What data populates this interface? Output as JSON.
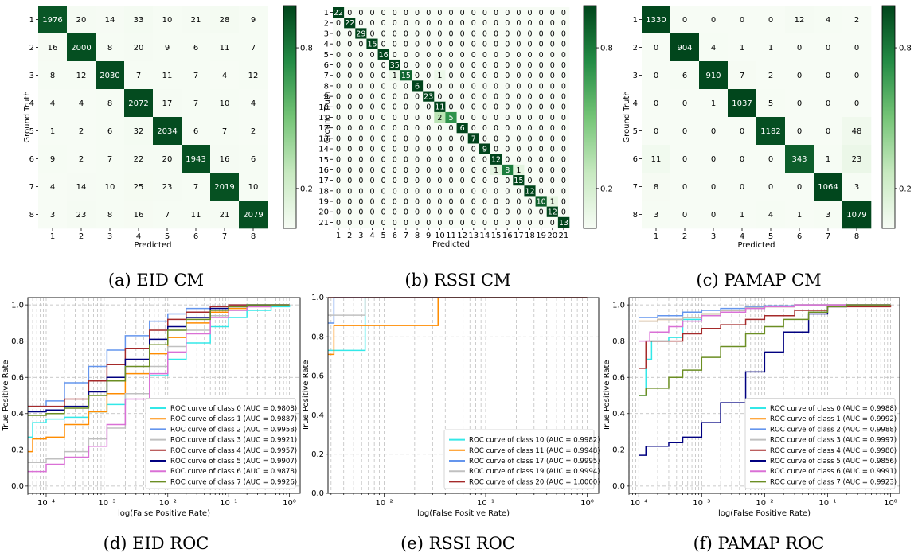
{
  "colors": {
    "cm_low": "#f7fcf5",
    "cm_high": "#00441b",
    "roc_classes": [
      "#33e8e8",
      "#ff8c00",
      "#6495ed",
      "#c0c0c0",
      "#a52a2a",
      "#000080",
      "#da70d6",
      "#6b8e23"
    ]
  },
  "chart_data": [
    {
      "id": "eid_cm",
      "type": "heatmap",
      "caption": "(a) EID CM",
      "xlabel": "Predicted",
      "ylabel": "Ground Truth",
      "labels": [
        "1",
        "2",
        "3",
        "4",
        "5",
        "6",
        "7",
        "8"
      ],
      "colorbar_ticks": [
        0.2,
        0.8
      ],
      "matrix": [
        [
          1976,
          20,
          14,
          33,
          10,
          21,
          28,
          9
        ],
        [
          16,
          2000,
          8,
          20,
          9,
          6,
          11,
          7
        ],
        [
          8,
          12,
          2030,
          7,
          11,
          7,
          4,
          12
        ],
        [
          4,
          4,
          8,
          2072,
          17,
          7,
          10,
          4
        ],
        [
          1,
          2,
          6,
          32,
          2034,
          6,
          7,
          2
        ],
        [
          9,
          2,
          7,
          22,
          20,
          1943,
          16,
          6
        ],
        [
          4,
          14,
          10,
          25,
          23,
          7,
          2019,
          10
        ],
        [
          3,
          23,
          8,
          16,
          7,
          11,
          21,
          2079
        ]
      ]
    },
    {
      "id": "rssi_cm",
      "type": "heatmap",
      "caption": "(b) RSSI CM",
      "xlabel": "Predicted",
      "ylabel": "Ground Truth",
      "labels": [
        "1",
        "2",
        "3",
        "4",
        "5",
        "6",
        "7",
        "8",
        "9",
        "10",
        "11",
        "12",
        "13",
        "14",
        "15",
        "16",
        "17",
        "18",
        "19",
        "20",
        "21"
      ],
      "colorbar_ticks": [
        0.2,
        0.8
      ],
      "diagonal": [
        22,
        22,
        29,
        15,
        16,
        35,
        15,
        6,
        23,
        11,
        5,
        6,
        7,
        9,
        12,
        8,
        15,
        12,
        10,
        12,
        13
      ],
      "off_diagonal": [
        {
          "row": 7,
          "col": 6,
          "value": 1
        },
        {
          "row": 7,
          "col": 10,
          "value": 1
        },
        {
          "row": 11,
          "col": 10,
          "value": 2
        },
        {
          "row": 16,
          "col": 15,
          "value": 1
        },
        {
          "row": 16,
          "col": 17,
          "value": 1
        },
        {
          "row": 19,
          "col": 20,
          "value": 1
        }
      ]
    },
    {
      "id": "pamap_cm",
      "type": "heatmap",
      "caption": "(c) PAMAP CM",
      "xlabel": "Predicted",
      "ylabel": "Ground Truth",
      "labels": [
        "1",
        "2",
        "3",
        "4",
        "5",
        "6",
        "7",
        "8"
      ],
      "colorbar_ticks": [
        0.2,
        0.8
      ],
      "matrix": [
        [
          1330,
          0,
          0,
          0,
          0,
          12,
          4,
          2
        ],
        [
          0,
          904,
          4,
          1,
          1,
          0,
          0,
          0
        ],
        [
          0,
          6,
          910,
          7,
          2,
          0,
          0,
          0
        ],
        [
          0,
          0,
          1,
          1037,
          5,
          0,
          0,
          0
        ],
        [
          0,
          0,
          0,
          0,
          1182,
          0,
          0,
          48
        ],
        [
          11,
          0,
          0,
          0,
          0,
          343,
          1,
          23
        ],
        [
          8,
          0,
          0,
          0,
          0,
          0,
          1064,
          3
        ],
        [
          3,
          0,
          0,
          1,
          4,
          1,
          3,
          1079
        ]
      ]
    },
    {
      "id": "eid_roc",
      "type": "line",
      "caption": "(d) EID ROC",
      "xlabel": "log(False Positive Rate)",
      "ylabel": "True Positive Rate",
      "x_scale": "log",
      "xlim": [
        5e-05,
        1.5
      ],
      "ylim": [
        -0.04,
        1.04
      ],
      "x_ticks": [
        "10⁻⁴",
        "10⁻³",
        "10⁻²",
        "10⁻¹",
        "10⁰"
      ],
      "y_ticks": [
        "0.0",
        "0.2",
        "0.4",
        "0.6",
        "0.8",
        "1.0"
      ],
      "grid": true,
      "legend_position": "lower right",
      "series": [
        {
          "name": "ROC curve of class 0 (AUC = 0.9808)",
          "x": [
            5e-05,
            6e-05,
            0.0001,
            0.0002,
            0.0005,
            0.001,
            0.002,
            0.005,
            0.01,
            0.02,
            0.05,
            0.1,
            0.2,
            0.5,
            1.0
          ],
          "y": [
            0.27,
            0.35,
            0.37,
            0.38,
            0.41,
            0.45,
            0.51,
            0.61,
            0.7,
            0.79,
            0.88,
            0.93,
            0.97,
            0.99,
            1.0
          ]
        },
        {
          "name": "ROC curve of class 1 (AUC = 0.9887)",
          "x": [
            5e-05,
            6e-05,
            0.0001,
            0.0002,
            0.0005,
            0.001,
            0.002,
            0.005,
            0.01,
            0.02,
            0.05,
            0.1,
            0.2,
            0.5,
            1.0
          ],
          "y": [
            0.19,
            0.26,
            0.27,
            0.34,
            0.41,
            0.51,
            0.62,
            0.73,
            0.82,
            0.9,
            0.96,
            0.98,
            0.99,
            1.0,
            1.0
          ]
        },
        {
          "name": "ROC curve of class 2 (AUC = 0.9958)",
          "x": [
            5e-05,
            6e-05,
            0.0001,
            0.0002,
            0.0005,
            0.001,
            0.002,
            0.005,
            0.01,
            0.02,
            0.05,
            0.1,
            0.2,
            0.5,
            1.0
          ],
          "y": [
            0.44,
            0.44,
            0.47,
            0.57,
            0.66,
            0.75,
            0.83,
            0.91,
            0.95,
            0.98,
            0.99,
            1.0,
            1.0,
            1.0,
            1.0
          ]
        },
        {
          "name": "ROC curve of class 3 (AUC = 0.9921)",
          "x": [
            5e-05,
            6e-05,
            0.0001,
            0.0002,
            0.0005,
            0.001,
            0.002,
            0.005,
            0.01,
            0.02,
            0.05,
            0.1,
            0.2,
            0.5,
            1.0
          ],
          "y": [
            0.13,
            0.13,
            0.15,
            0.19,
            0.26,
            0.32,
            0.51,
            0.66,
            0.77,
            0.86,
            0.94,
            0.97,
            0.99,
            1.0,
            1.0
          ]
        },
        {
          "name": "ROC curve of class 4 (AUC = 0.9957)",
          "x": [
            5e-05,
            6e-05,
            0.0001,
            0.0002,
            0.0005,
            0.001,
            0.002,
            0.005,
            0.01,
            0.02,
            0.05,
            0.1,
            0.2,
            0.5,
            1.0
          ],
          "y": [
            0.44,
            0.44,
            0.44,
            0.48,
            0.58,
            0.67,
            0.76,
            0.86,
            0.92,
            0.96,
            0.99,
            1.0,
            1.0,
            1.0,
            1.0
          ]
        },
        {
          "name": "ROC curve of class 5 (AUC = 0.9907)",
          "x": [
            5e-05,
            6e-05,
            0.0001,
            0.0002,
            0.0005,
            0.001,
            0.002,
            0.005,
            0.01,
            0.02,
            0.05,
            0.1,
            0.2,
            0.5,
            1.0
          ],
          "y": [
            0.41,
            0.41,
            0.42,
            0.44,
            0.52,
            0.6,
            0.7,
            0.81,
            0.88,
            0.93,
            0.98,
            0.99,
            1.0,
            1.0,
            1.0
          ]
        },
        {
          "name": "ROC curve of class 6 (AUC = 0.9878)",
          "x": [
            5e-05,
            6e-05,
            0.0001,
            0.0002,
            0.0005,
            0.001,
            0.002,
            0.005,
            0.01,
            0.02,
            0.05,
            0.1,
            0.2,
            0.5,
            1.0
          ],
          "y": [
            0.08,
            0.08,
            0.12,
            0.16,
            0.22,
            0.34,
            0.48,
            0.62,
            0.74,
            0.84,
            0.93,
            0.97,
            0.99,
            1.0,
            1.0
          ]
        },
        {
          "name": "ROC curve of class 7 (AUC = 0.9926)",
          "x": [
            5e-05,
            6e-05,
            0.0001,
            0.0002,
            0.0005,
            0.001,
            0.002,
            0.005,
            0.01,
            0.02,
            0.05,
            0.1,
            0.2,
            0.5,
            1.0
          ],
          "y": [
            0.39,
            0.39,
            0.4,
            0.43,
            0.5,
            0.58,
            0.66,
            0.78,
            0.86,
            0.92,
            0.97,
            0.99,
            1.0,
            1.0,
            1.0
          ]
        }
      ]
    },
    {
      "id": "rssi_roc",
      "type": "line",
      "caption": "(e) RSSI ROC",
      "xlabel": "log(False Positive Rate)",
      "ylabel": "True Positive Rate",
      "x_scale": "log",
      "xlim": [
        0.0028,
        1.3
      ],
      "ylim": [
        0,
        1.0
      ],
      "x_ticks": [
        "10⁻²",
        "10⁻¹",
        "10⁰"
      ],
      "y_ticks": [
        "0.0",
        "0.2",
        "0.4",
        "0.6",
        "0.8",
        "1.0"
      ],
      "grid": true,
      "legend_position": "lower right",
      "series": [
        {
          "name": "ROC curve of class 10 (AUC = 0.9982)",
          "x": [
            0.0028,
            0.0065,
            0.0065,
            1.0
          ],
          "y": [
            0.73,
            0.73,
            1.0,
            1.0
          ]
        },
        {
          "name": "ROC curve of class 11 (AUC = 0.9948)",
          "x": [
            0.0028,
            0.0032,
            0.0032,
            0.034,
            0.034,
            1.0
          ],
          "y": [
            0.71,
            0.71,
            0.857,
            0.857,
            1.0,
            1.0
          ]
        },
        {
          "name": "ROC curve of class 17 (AUC = 0.9995)",
          "x": [
            0.0028,
            0.0032,
            0.0032,
            1.0
          ],
          "y": [
            0.87,
            0.87,
            1.0,
            1.0
          ]
        },
        {
          "name": "ROC curve of class 19 (AUC = 0.9994)",
          "x": [
            0.0028,
            0.0065,
            0.0065,
            1.0
          ],
          "y": [
            0.91,
            0.91,
            1.0,
            1.0
          ]
        },
        {
          "name": "ROC curve of class 20 (AUC = 1.0000)",
          "x": [
            0.0028,
            1.0
          ],
          "y": [
            1.0,
            1.0
          ]
        }
      ]
    },
    {
      "id": "pamap_roc",
      "type": "line",
      "caption": "(f) PAMAP ROC",
      "xlabel": "log(False Positive Rate)",
      "ylabel": "True Positive Rate",
      "x_scale": "log",
      "xlim": [
        7e-05,
        1.4
      ],
      "ylim": [
        -0.04,
        1.04
      ],
      "x_ticks": [
        "10⁻⁴",
        "10⁻³",
        "10⁻²",
        "10⁻¹",
        "10⁰"
      ],
      "y_ticks": [
        "0.0",
        "0.2",
        "0.4",
        "0.6",
        "0.8",
        "1.0"
      ],
      "grid": true,
      "legend_position": "lower right",
      "series": [
        {
          "name": "ROC curve of class 0 (AUC = 0.9988)",
          "x": [
            0.0001,
            0.00013,
            0.00016,
            0.0003,
            0.0005,
            0.001,
            0.002,
            0.005,
            0.01,
            0.03,
            0.1,
            1.0
          ],
          "y": [
            0.5,
            0.7,
            0.8,
            0.82,
            0.92,
            0.95,
            0.97,
            0.985,
            0.99,
            1.0,
            1.0,
            1.0
          ]
        },
        {
          "name": "ROC curve of class 1 (AUC = 0.9992)",
          "x": [
            0.0001,
            0.0002,
            0.0005,
            0.001,
            0.002,
            0.005,
            0.01,
            0.03,
            0.1,
            1.0
          ],
          "y": [
            0.91,
            0.92,
            0.93,
            0.95,
            0.97,
            0.985,
            0.99,
            1.0,
            1.0,
            1.0
          ]
        },
        {
          "name": "ROC curve of class 2 (AUC = 0.9988)",
          "x": [
            0.0001,
            0.0002,
            0.0005,
            0.001,
            0.002,
            0.005,
            0.01,
            0.03,
            0.1,
            1.0
          ],
          "y": [
            0.93,
            0.94,
            0.96,
            0.97,
            0.98,
            0.99,
            0.995,
            1.0,
            1.0,
            1.0
          ]
        },
        {
          "name": "ROC curve of class 3 (AUC = 0.9997)",
          "x": [
            0.0001,
            0.0002,
            0.0005,
            0.001,
            0.002,
            0.005,
            0.01,
            0.03,
            0.1,
            1.0
          ],
          "y": [
            0.91,
            0.92,
            0.93,
            0.95,
            0.97,
            0.985,
            0.99,
            1.0,
            1.0,
            1.0
          ]
        },
        {
          "name": "ROC curve of class 4 (AUC = 0.9980)",
          "x": [
            0.0001,
            0.00013,
            0.0005,
            0.001,
            0.002,
            0.005,
            0.01,
            0.03,
            0.1,
            1.0
          ],
          "y": [
            0.65,
            0.8,
            0.84,
            0.87,
            0.89,
            0.92,
            0.94,
            0.97,
            0.99,
            1.0
          ]
        },
        {
          "name": "ROC curve of class 5 (AUC = 0.9856)",
          "x": [
            0.0001,
            0.00013,
            0.0003,
            0.0005,
            0.001,
            0.002,
            0.005,
            0.01,
            0.02,
            0.05,
            0.1,
            0.2,
            1.0
          ],
          "y": [
            0.17,
            0.22,
            0.24,
            0.27,
            0.35,
            0.46,
            0.63,
            0.74,
            0.85,
            0.95,
            0.99,
            1.0,
            1.0
          ]
        },
        {
          "name": "ROC curve of class 6 (AUC = 0.9991)",
          "x": [
            0.0001,
            0.00015,
            0.0003,
            0.0005,
            0.001,
            0.002,
            0.005,
            0.01,
            0.03,
            0.1,
            1.0
          ],
          "y": [
            0.8,
            0.85,
            0.88,
            0.91,
            0.94,
            0.96,
            0.98,
            0.99,
            1.0,
            1.0,
            1.0
          ]
        },
        {
          "name": "ROC curve of class 7 (AUC = 0.9923)",
          "x": [
            0.0001,
            0.00013,
            0.0003,
            0.0005,
            0.001,
            0.002,
            0.005,
            0.01,
            0.02,
            0.05,
            0.1,
            0.2,
            1.0
          ],
          "y": [
            0.5,
            0.54,
            0.6,
            0.64,
            0.71,
            0.77,
            0.84,
            0.88,
            0.92,
            0.96,
            0.99,
            1.0,
            1.0
          ]
        }
      ]
    }
  ]
}
